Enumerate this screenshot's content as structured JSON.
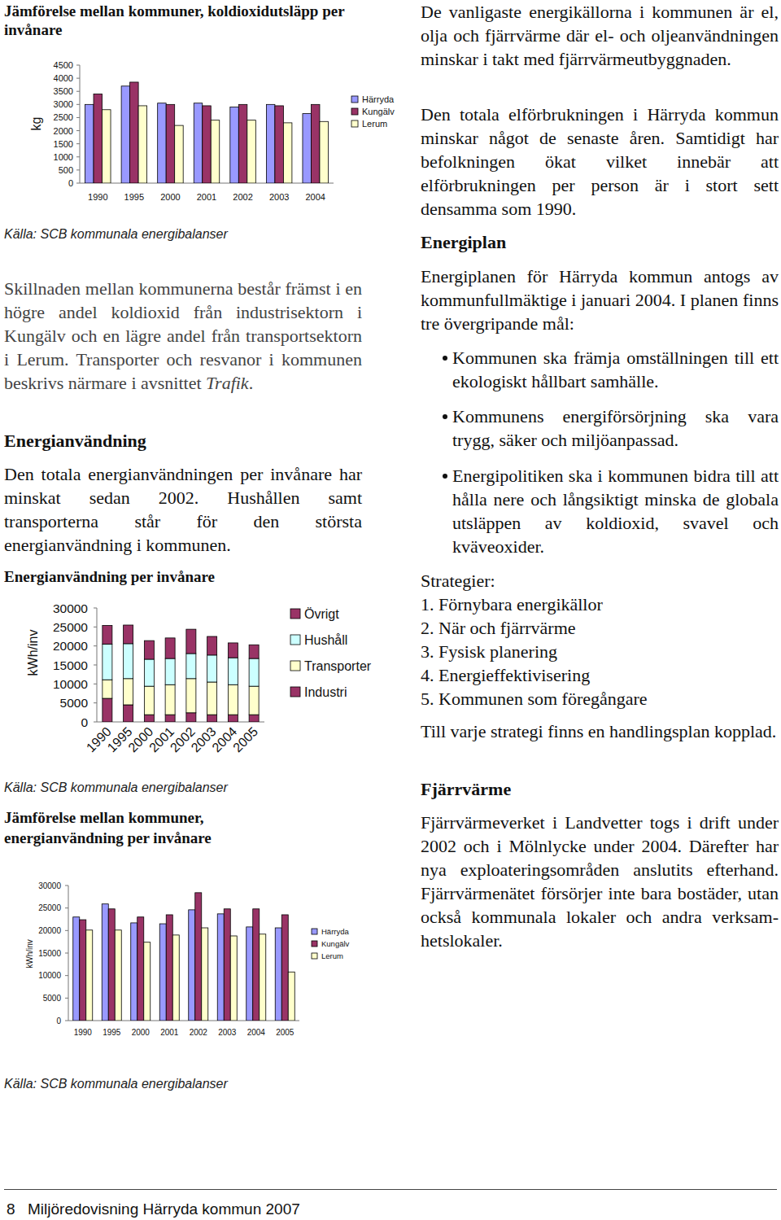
{
  "chart_data": [
    {
      "type": "bar",
      "title": "Jämförelse mellan kommuner, koldioxidutsläpp per invånare",
      "y_label": "kg",
      "source": "Källa: SCB kommunala energibalanser",
      "categories": [
        "1990",
        "1995",
        "2000",
        "2001",
        "2002",
        "2003",
        "2004"
      ],
      "series": [
        {
          "name": "Härryda",
          "color": "#9999ff",
          "values": [
            3000,
            3700,
            3050,
            3050,
            2900,
            3000,
            2650
          ]
        },
        {
          "name": "Kungälv",
          "color": "#993366",
          "values": [
            3400,
            3850,
            3000,
            2950,
            3000,
            2950,
            3000
          ]
        },
        {
          "name": "Lerum",
          "color": "#ffffcc",
          "values": [
            2800,
            2950,
            2200,
            2400,
            2400,
            2300,
            2350
          ]
        }
      ],
      "ylim": [
        0,
        4500
      ],
      "yticks": [
        0,
        500,
        1000,
        1500,
        2000,
        2500,
        3000,
        3500,
        4000,
        4500
      ],
      "legend": "right"
    },
    {
      "type": "bar",
      "title": "Energianvändning per invånare",
      "y_label": "kWh/inv",
      "source": "Källa: SCB kommunala energibalanser",
      "categories": [
        "1990",
        "1995",
        "2000",
        "2001",
        "2002",
        "2003",
        "2004",
        "2005"
      ],
      "series": [
        {
          "name": "Industri",
          "color": "#993366",
          "values": [
            6200,
            4500,
            1900,
            1900,
            2400,
            1900,
            1900,
            1900
          ]
        },
        {
          "name": "Transporter",
          "color": "#ffffcc",
          "values": [
            4900,
            6900,
            7500,
            7900,
            9000,
            8600,
            7900,
            7500
          ]
        },
        {
          "name": "Hushåll",
          "color": "#ccffff",
          "values": [
            9400,
            9200,
            7100,
            6900,
            6600,
            7100,
            7100,
            7300
          ]
        },
        {
          "name": "Övrigt",
          "color": "#993366",
          "values": [
            4900,
            4900,
            4900,
            5400,
            6400,
            4900,
            3900,
            3600
          ]
        }
      ],
      "ylim": [
        0,
        30000
      ],
      "yticks": [
        0,
        5000,
        10000,
        15000,
        20000,
        25000,
        30000
      ],
      "stacked": true,
      "legend": "right"
    },
    {
      "type": "bar",
      "title": "Jämförelse mellan kommuner, energianvändning per invånare",
      "y_label": "kWh/inv",
      "source": "Källa: SCB kommunala energibalanser",
      "categories": [
        "1990",
        "1995",
        "2000",
        "2001",
        "2002",
        "2003",
        "2004",
        "2005"
      ],
      "series": [
        {
          "name": "Härryda",
          "color": "#9999ff",
          "values": [
            23000,
            25900,
            21700,
            21500,
            24600,
            23700,
            20800,
            20600
          ]
        },
        {
          "name": "Kungälv",
          "color": "#993366",
          "values": [
            22400,
            24800,
            23000,
            23500,
            28400,
            24800,
            24800,
            23500
          ]
        },
        {
          "name": "Lerum",
          "color": "#ffffcc",
          "values": [
            20100,
            20100,
            17400,
            19000,
            20600,
            18800,
            19200,
            10800
          ]
        }
      ],
      "ylim": [
        0,
        30000
      ],
      "yticks": [
        0,
        5000,
        10000,
        15000,
        20000,
        25000,
        30000
      ],
      "legend": "right"
    }
  ],
  "document": {
    "left": {
      "paragraph_1": [
        "Skillnaden mellan kommunerna består främst i en högre andel koldioxid från industrisektorn i Kungälv och en lägre andel från transportsektorn i Lerum. Transporter och resvanor i kommunen beskrivs närmare i avsnittet ",
        "Trafik",
        "."
      ],
      "heading": "Energianvändning",
      "paragraph_2": "Den totala energianvändningen per invånare har minskat sedan 2002. Hushållen samt transporterna står för den största energianvändning i kommunen."
    },
    "right": {
      "paragraph_1": "De vanligaste energikällorna i kommunen är el, olja och fjärrvärme där el- och oljeanvändningen minskar i takt med fjärr­värmeutbyggnaden.",
      "paragraph_2": "Den totala elförbrukningen i Härryda kommun minskar något de senaste åren. Samtidigt har befolkningen ökat vilket innebär att elförbrukningen per person är i stort sett densamma som 1990.",
      "heading_1": "Energiplan",
      "paragraph_3": "Energiplanen för Härryda kommun antogs av kommunfullmäktige i januari 2004. I planen finns tre övergripande mål:",
      "goals": [
        "Kommunen ska främja omställningen till ett ekologiskt hållbart samhälle.",
        "Kommunens energiförsörjning ska vara trygg, säker och miljöanpassad.",
        "Energipolitiken ska i kommunen bidra till att hålla nere och långsiktigt minska de globala utsläppen av koldioxid, svavel och kväveoxider."
      ],
      "strategies_label": "Strategier:",
      "strategies": [
        "1. Förnybara energikällor",
        "2. När och fjärrvärme",
        "3. Fysisk planering",
        "4. Energieffektivisering",
        "5. Kommunen som föregångare"
      ],
      "paragraph_4": "Till varje strategi finns en handlingsplan kopplad.",
      "heading_2": "Fjärrvärme",
      "paragraph_5": "Fjärrvärmeverket i Landvetter togs i drift under 2002 och i Mölnlycke under 2004. Därefter har nya exploateringsområden anslutits efterhand. Fjärrvärmenätet försörjer inte bara bostäder, utan också kommunala lokaler och andra verksam­hetslokaler."
    },
    "footer": {
      "page": "8",
      "title": "Miljöredovisning Härryda kommun 2007"
    }
  }
}
